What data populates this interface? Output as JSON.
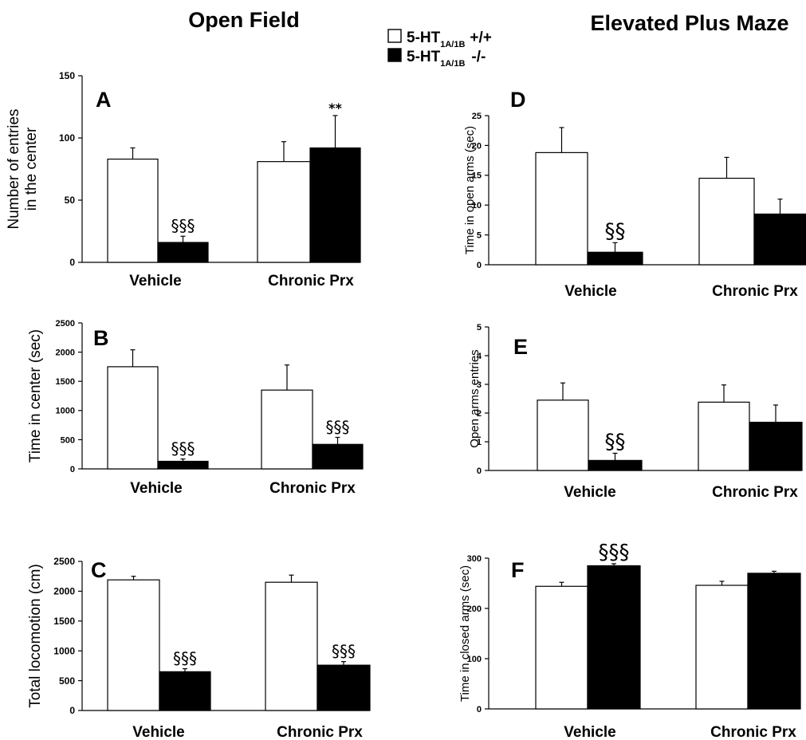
{
  "titles": {
    "left": "Open Field",
    "right": "Elevated Plus Maze"
  },
  "legend": {
    "wild": {
      "main": "5-HT",
      "sub": "1A/1B",
      "genotype": "+/+",
      "color": "#ffffff"
    },
    "knockout": {
      "main": "5-HT",
      "sub": "1A/1B",
      "genotype": "-/-",
      "color": "#000000"
    }
  },
  "chart_data": [
    {
      "panel": "A",
      "type": "bar",
      "categories": [
        "Vehicle",
        "Chronic Prx"
      ],
      "series": [
        {
          "name": "5-HT1A/1B +/+",
          "values": [
            83,
            81
          ],
          "errors": [
            9,
            16
          ],
          "color": "#ffffff"
        },
        {
          "name": "5-HT1A/1B -/-",
          "values": [
            16,
            92
          ],
          "errors": [
            5,
            26
          ],
          "color": "#000000"
        }
      ],
      "ylabel": [
        "Number of entries",
        "in the center"
      ],
      "ylim": [
        0,
        150
      ],
      "yticks": [
        0,
        50,
        100,
        150
      ],
      "annotations": [
        {
          "category": 1,
          "series": 1,
          "text": "**"
        },
        {
          "category": 0,
          "series": 1,
          "text": "§§§"
        }
      ]
    },
    {
      "panel": "B",
      "type": "bar",
      "categories": [
        "Vehicle",
        "Chronic Prx"
      ],
      "series": [
        {
          "name": "5-HT1A/1B +/+",
          "values": [
            1750,
            1350
          ],
          "errors": [
            290,
            430
          ],
          "color": "#ffffff"
        },
        {
          "name": "5-HT1A/1B -/-",
          "values": [
            130,
            420
          ],
          "errors": [
            40,
            120
          ],
          "color": "#000000"
        }
      ],
      "ylabel": [
        "Time in center (sec)"
      ],
      "ylim": [
        0,
        2500
      ],
      "yticks": [
        0,
        500,
        1000,
        1500,
        2000,
        2500
      ],
      "annotations": [
        {
          "category": 0,
          "series": 1,
          "text": "§§§"
        },
        {
          "category": 1,
          "series": 1,
          "text": "§§§"
        }
      ]
    },
    {
      "panel": "C",
      "type": "bar",
      "categories": [
        "Vehicle",
        "Chronic Prx"
      ],
      "series": [
        {
          "name": "5-HT1A/1B +/+",
          "values": [
            2190,
            2150
          ],
          "errors": [
            60,
            120
          ],
          "color": "#ffffff"
        },
        {
          "name": "5-HT1A/1B -/-",
          "values": [
            650,
            760
          ],
          "errors": [
            50,
            60
          ],
          "color": "#000000"
        }
      ],
      "ylabel": [
        "Total locomotion (cm)"
      ],
      "ylim": [
        0,
        2500
      ],
      "yticks": [
        0,
        500,
        1000,
        1500,
        2000,
        2500
      ],
      "annotations": [
        {
          "category": 0,
          "series": 1,
          "text": "§§§"
        },
        {
          "category": 1,
          "series": 1,
          "text": "§§§"
        }
      ]
    },
    {
      "panel": "D",
      "type": "bar",
      "categories": [
        "Vehicle",
        "Chronic Prx"
      ],
      "series": [
        {
          "name": "5-HT1A/1B +/+",
          "values": [
            18.8,
            14.5
          ],
          "errors": [
            4.2,
            3.5
          ],
          "color": "#ffffff"
        },
        {
          "name": "5-HT1A/1B -/-",
          "values": [
            2.1,
            8.5
          ],
          "errors": [
            1.6,
            2.5
          ],
          "color": "#000000"
        }
      ],
      "ylabel": [
        "Time in open arms (sec)"
      ],
      "ylim": [
        0,
        25
      ],
      "yticks": [
        0,
        5,
        10,
        15,
        20,
        25
      ],
      "annotations": [
        {
          "category": 0,
          "series": 1,
          "text": "§§"
        }
      ]
    },
    {
      "panel": "E",
      "type": "bar",
      "categories": [
        "Vehicle",
        "Chronic Prx"
      ],
      "series": [
        {
          "name": "5-HT1A/1B +/+",
          "values": [
            2.45,
            2.38
          ],
          "errors": [
            0.6,
            0.6
          ],
          "color": "#ffffff"
        },
        {
          "name": "5-HT1A/1B -/-",
          "values": [
            0.35,
            1.68
          ],
          "errors": [
            0.25,
            0.6
          ],
          "color": "#000000"
        }
      ],
      "ylabel": [
        "Open arms entries"
      ],
      "ylim": [
        0,
        5
      ],
      "yticks": [
        0,
        1,
        2,
        3,
        4,
        5
      ],
      "annotations": [
        {
          "category": 0,
          "series": 1,
          "text": "§§"
        }
      ]
    },
    {
      "panel": "F",
      "type": "bar",
      "categories": [
        "Vehicle",
        "Chronic Prx"
      ],
      "series": [
        {
          "name": "5-HT1A/1B +/+",
          "values": [
            244,
            246
          ],
          "errors": [
            8,
            8
          ],
          "color": "#ffffff"
        },
        {
          "name": "5-HT1A/1B -/-",
          "values": [
            285,
            270
          ],
          "errors": [
            4,
            4
          ],
          "color": "#000000"
        }
      ],
      "ylabel": [
        "Time in closed arms (sec)"
      ],
      "ylim": [
        0,
        300
      ],
      "yticks": [
        0,
        100,
        200,
        300
      ],
      "annotations": [
        {
          "category": 0,
          "series": 1,
          "text": "§§§"
        }
      ]
    }
  ]
}
